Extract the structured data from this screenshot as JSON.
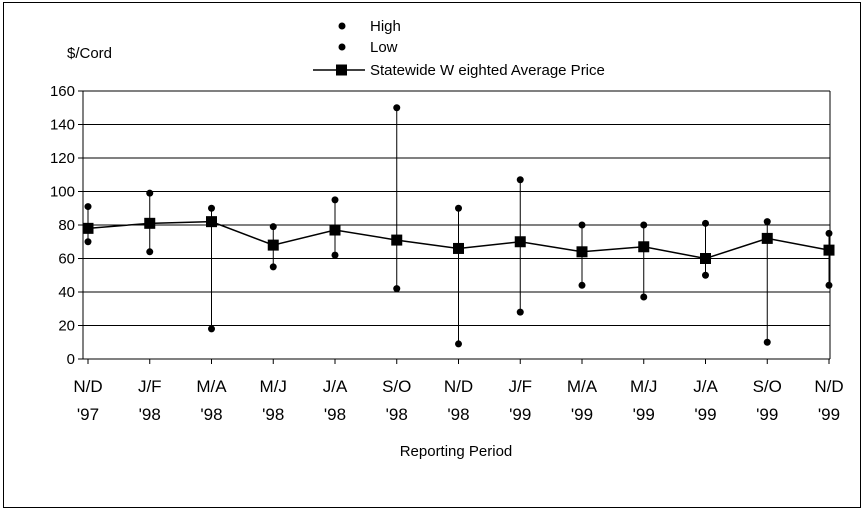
{
  "chart_data": {
    "type": "line",
    "ylabel": "$/Cord",
    "xlabel": "Reporting Period",
    "ylim": [
      0,
      160
    ],
    "yticks": [
      0,
      20,
      40,
      60,
      80,
      100,
      120,
      140,
      160
    ],
    "grid": "horizontal",
    "legend_position": "top",
    "categories": [
      [
        "N/D",
        "'97"
      ],
      [
        "J/F",
        "'98"
      ],
      [
        "M/A",
        "'98"
      ],
      [
        "M/J",
        "'98"
      ],
      [
        "J/A",
        "'98"
      ],
      [
        "S/O",
        "'98"
      ],
      [
        "N/D",
        "'98"
      ],
      [
        "J/F",
        "'99"
      ],
      [
        "M/A",
        "'99"
      ],
      [
        "M/J",
        "'99"
      ],
      [
        "J/A",
        "'99"
      ],
      [
        "S/O",
        "'99"
      ],
      [
        "N/D",
        "'99"
      ]
    ],
    "series": [
      {
        "name": "High",
        "marker": "circle",
        "values": [
          91,
          99,
          90,
          79,
          95,
          150,
          90,
          107,
          80,
          80,
          81,
          82,
          75
        ]
      },
      {
        "name": "Low",
        "marker": "circle",
        "values": [
          70,
          64,
          18,
          55,
          62,
          42,
          9,
          28,
          44,
          37,
          50,
          10,
          44
        ]
      },
      {
        "name": "Statewide W eighted Average Price",
        "marker": "square",
        "line": true,
        "values": [
          78,
          81,
          82,
          68,
          77,
          71,
          66,
          70,
          64,
          67,
          60,
          72,
          65
        ]
      }
    ]
  }
}
